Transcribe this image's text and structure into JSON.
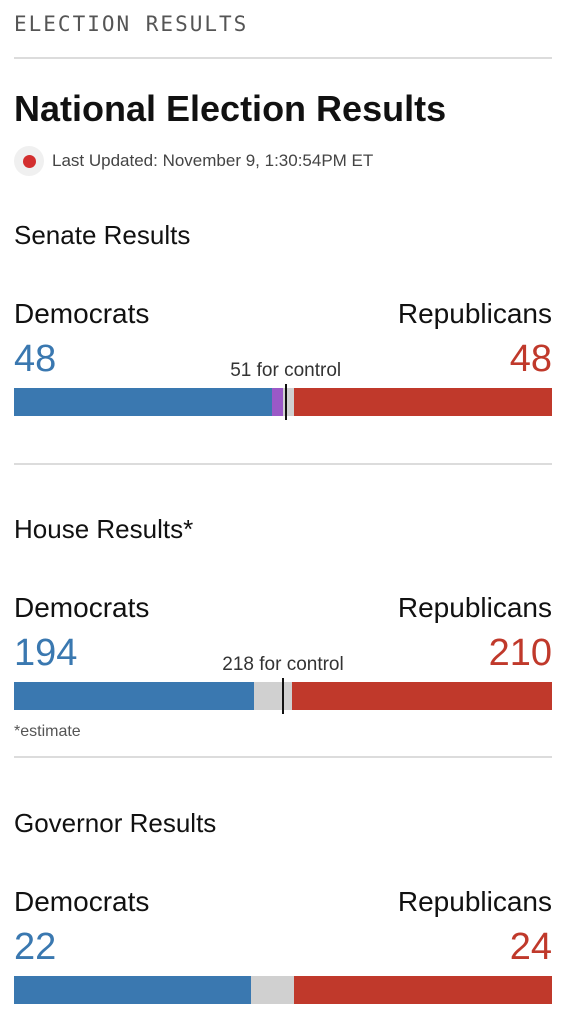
{
  "header": {
    "section_label": "ELECTION RESULTS",
    "title": "National Election Results",
    "last_updated": "Last Updated: November 9, 1:30:54PM ET"
  },
  "colors": {
    "democrat": "#3a78b0",
    "republican": "#c0392b",
    "independent": "#9b59c7",
    "uncalled": "#d0d0d0",
    "live": "#d32f2f"
  },
  "races": {
    "senate": {
      "title": "Senate Results",
      "dem_label": "Democrats",
      "rep_label": "Republicans",
      "dem_count": "48",
      "rep_count": "48",
      "control_label": "51 for control",
      "total_seats": 100,
      "dem_seats": 48,
      "ind_seats": 2,
      "rep_seats": 48,
      "control_seats": 51
    },
    "house": {
      "title": "House Results*",
      "dem_label": "Democrats",
      "rep_label": "Republicans",
      "dem_count": "194",
      "rep_count": "210",
      "control_label": "218 for control",
      "note": "*estimate",
      "total_seats": 435,
      "dem_seats": 194,
      "ind_seats": 0,
      "rep_seats": 210,
      "control_seats": 218
    },
    "governor": {
      "title": "Governor Results",
      "dem_label": "Democrats",
      "rep_label": "Republicans",
      "dem_count": "22",
      "rep_count": "24",
      "total_seats": 50,
      "dem_seats": 22,
      "ind_seats": 0,
      "rep_seats": 24
    }
  }
}
